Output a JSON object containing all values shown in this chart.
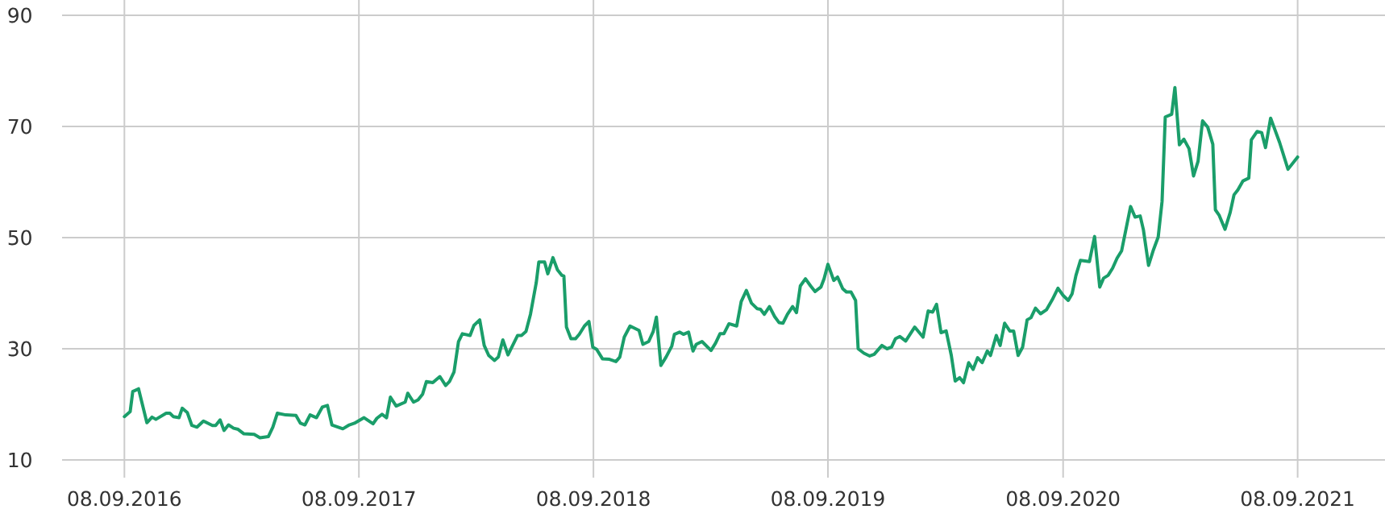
{
  "chart_data": {
    "type": "line",
    "x": [
      "2016-09-08",
      "2016-09-17",
      "2016-09-21",
      "2016-09-30",
      "2016-10-13",
      "2016-10-21",
      "2016-10-27",
      "2016-11-12",
      "2016-11-18",
      "2016-11-23",
      "2016-12-02",
      "2016-12-07",
      "2016-12-15",
      "2016-12-22",
      "2016-12-30",
      "2017-01-09",
      "2017-01-23",
      "2017-01-28",
      "2017-02-04",
      "2017-02-10",
      "2017-02-17",
      "2017-02-25",
      "2017-03-04",
      "2017-03-13",
      "2017-03-29",
      "2017-04-07",
      "2017-04-20",
      "2017-04-27",
      "2017-05-04",
      "2017-05-17",
      "2017-06-02",
      "2017-06-09",
      "2017-06-16",
      "2017-06-24",
      "2017-07-04",
      "2017-07-13",
      "2017-07-21",
      "2017-07-28",
      "2017-08-14",
      "2017-08-24",
      "2017-09-01",
      "2017-09-16",
      "2017-09-30",
      "2017-10-06",
      "2017-10-14",
      "2017-10-21",
      "2017-10-27",
      "2017-11-05",
      "2017-11-19",
      "2017-11-23",
      "2017-12-02",
      "2017-12-09",
      "2017-12-16",
      "2017-12-22",
      "2018-01-01",
      "2018-01-12",
      "2018-01-21",
      "2018-01-27",
      "2018-02-03",
      "2018-02-10",
      "2018-02-16",
      "2018-02-28",
      "2018-03-06",
      "2018-03-15",
      "2018-03-22",
      "2018-03-29",
      "2018-04-07",
      "2018-04-13",
      "2018-04-20",
      "2018-04-28",
      "2018-05-13",
      "2018-05-19",
      "2018-05-26",
      "2018-06-02",
      "2018-06-11",
      "2018-06-15",
      "2018-06-24",
      "2018-06-29",
      "2018-07-07",
      "2018-07-14",
      "2018-07-21",
      "2018-07-24",
      "2018-07-28",
      "2018-08-04",
      "2018-08-11",
      "2018-08-17",
      "2018-08-25",
      "2018-09-01",
      "2018-09-07",
      "2018-09-13",
      "2018-09-22",
      "2018-10-03",
      "2018-10-13",
      "2018-10-19",
      "2018-10-26",
      "2018-11-04",
      "2018-11-18",
      "2018-11-24",
      "2018-12-03",
      "2018-12-10",
      "2018-12-15",
      "2018-12-22",
      "2018-12-30",
      "2019-01-08",
      "2019-01-12",
      "2019-01-20",
      "2019-01-26",
      "2019-02-03",
      "2019-02-10",
      "2019-02-15",
      "2019-02-24",
      "2019-03-10",
      "2019-03-17",
      "2019-03-24",
      "2019-03-30",
      "2019-04-07",
      "2019-04-19",
      "2019-04-26",
      "2019-05-04",
      "2019-05-12",
      "2019-05-21",
      "2019-05-26",
      "2019-06-01",
      "2019-06-09",
      "2019-06-17",
      "2019-06-24",
      "2019-06-30",
      "2019-07-07",
      "2019-07-15",
      "2019-07-21",
      "2019-07-27",
      "2019-08-04",
      "2019-08-12",
      "2019-08-19",
      "2019-08-28",
      "2019-09-02",
      "2019-09-08",
      "2019-09-17",
      "2019-09-23",
      "2019-10-01",
      "2019-10-07",
      "2019-10-14",
      "2019-10-21",
      "2019-10-25",
      "2019-11-03",
      "2019-11-12",
      "2019-11-19",
      "2019-12-01",
      "2019-12-09",
      "2019-12-16",
      "2019-12-22",
      "2019-12-29",
      "2020-01-07",
      "2020-01-21",
      "2020-02-03",
      "2020-02-11",
      "2020-02-18",
      "2020-02-24",
      "2020-03-02",
      "2020-03-10",
      "2020-03-18",
      "2020-03-24",
      "2020-03-31",
      "2020-04-06",
      "2020-04-14",
      "2020-04-21",
      "2020-04-28",
      "2020-05-05",
      "2020-05-13",
      "2020-05-18",
      "2020-05-27",
      "2020-06-02",
      "2020-06-09",
      "2020-06-17",
      "2020-06-23",
      "2020-06-30",
      "2020-07-07",
      "2020-07-14",
      "2020-07-20",
      "2020-07-27",
      "2020-08-04",
      "2020-08-13",
      "2020-08-22",
      "2020-08-31",
      "2020-09-08",
      "2020-09-16",
      "2020-09-22",
      "2020-09-28",
      "2020-10-05",
      "2020-10-19",
      "2020-10-27",
      "2020-11-04",
      "2020-11-10",
      "2020-11-17",
      "2020-11-24",
      "2020-12-01",
      "2020-12-08",
      "2020-12-22",
      "2020-12-29",
      "2021-01-06",
      "2021-01-11",
      "2021-01-19",
      "2021-01-26",
      "2021-02-03",
      "2021-02-09",
      "2021-02-14",
      "2021-02-24",
      "2021-03-01",
      "2021-03-08",
      "2021-03-15",
      "2021-03-23",
      "2021-03-30",
      "2021-04-06",
      "2021-04-13",
      "2021-04-21",
      "2021-04-29",
      "2021-05-03",
      "2021-05-09",
      "2021-05-18",
      "2021-05-26",
      "2021-06-01",
      "2021-06-07",
      "2021-06-15",
      "2021-06-24",
      "2021-06-28",
      "2021-07-07",
      "2021-07-14",
      "2021-07-20",
      "2021-07-28",
      "2021-08-11",
      "2021-08-24",
      "2021-09-08"
    ],
    "series": [
      {
        "color": "#1a9e6a",
        "values": [
          17.8,
          18.7,
          22.3,
          22.8,
          16.7,
          17.7,
          17.3,
          18.4,
          18.4,
          17.8,
          17.6,
          19.3,
          18.5,
          16.2,
          15.9,
          17.0,
          16.2,
          16.2,
          17.2,
          15.3,
          16.3,
          15.7,
          15.5,
          14.7,
          14.6,
          14.0,
          14.2,
          15.9,
          18.4,
          18.1,
          18.0,
          16.6,
          16.3,
          18.1,
          17.6,
          19.5,
          19.8,
          16.3,
          15.6,
          16.3,
          16.6,
          17.6,
          16.5,
          17.5,
          18.2,
          17.6,
          21.3,
          19.7,
          20.4,
          22.0,
          20.4,
          20.8,
          21.8,
          24.1,
          23.9,
          25.0,
          23.4,
          24.1,
          25.8,
          31.3,
          32.7,
          32.4,
          34.2,
          35.2,
          30.6,
          28.8,
          27.9,
          28.5,
          31.6,
          28.9,
          32.4,
          32.4,
          33.1,
          36.2,
          41.9,
          45.6,
          45.6,
          43.5,
          46.4,
          44.2,
          43.2,
          43.1,
          33.9,
          31.8,
          31.8,
          32.6,
          34.1,
          34.9,
          30.3,
          29.9,
          28.2,
          28.1,
          27.7,
          28.5,
          32.1,
          34.1,
          33.3,
          30.8,
          31.3,
          33.1,
          35.7,
          27.0,
          28.5,
          30.5,
          32.6,
          33.0,
          32.6,
          33.0,
          29.6,
          30.8,
          31.3,
          29.7,
          31.0,
          32.7,
          32.7,
          34.5,
          34.1,
          38.5,
          40.5,
          38.2,
          37.2,
          37.1,
          36.2,
          37.6,
          35.8,
          34.7,
          34.6,
          36.2,
          37.6,
          36.5,
          41.3,
          42.6,
          41.3,
          40.3,
          41.1,
          42.6,
          45.2,
          42.3,
          42.9,
          40.8,
          40.2,
          40.2,
          38.7,
          30.0,
          29.2,
          28.7,
          29.0,
          30.6,
          30.0,
          30.3,
          31.8,
          32.2,
          31.4,
          33.9,
          32.1,
          36.8,
          36.6,
          38.0,
          32.9,
          33.2,
          28.8,
          24.2,
          24.8,
          23.9,
          27.5,
          26.3,
          28.4,
          27.5,
          29.6,
          28.8,
          32.4,
          30.6,
          34.6,
          33.2,
          33.2,
          28.8,
          30.3,
          35.2,
          35.6,
          37.3,
          36.3,
          37.0,
          38.8,
          40.9,
          39.6,
          38.7,
          39.9,
          43.2,
          45.9,
          45.7,
          50.2,
          41.1,
          42.7,
          43.2,
          44.5,
          46.3,
          47.6,
          55.6,
          53.7,
          53.9,
          51.4,
          45.0,
          47.6,
          50.1,
          56.5,
          71.7,
          72.2,
          77.0,
          66.7,
          67.7,
          66.0,
          61.1,
          63.7,
          71.0,
          69.9,
          66.8,
          55.0,
          54.0,
          51.5,
          54.5,
          57.7,
          58.6,
          60.2,
          60.7,
          67.6,
          69.1,
          68.9,
          66.2,
          71.5,
          67.1,
          62.3,
          64.5
        ]
      }
    ],
    "xlim": [
      "2016-06-03",
      "2022-01-22"
    ],
    "xticks": [
      {
        "value": "2016-09-08",
        "label": "08.09.2016"
      },
      {
        "value": "2017-09-08",
        "label": "08.09.2017"
      },
      {
        "value": "2018-09-08",
        "label": "08.09.2018"
      },
      {
        "value": "2019-09-08",
        "label": "08.09.2019"
      },
      {
        "value": "2020-09-08",
        "label": "08.09.2020"
      },
      {
        "value": "2021-09-08",
        "label": "08.09.2021"
      }
    ],
    "ylim": [
      10,
      90
    ],
    "yticks": [
      10,
      30,
      50,
      70,
      90
    ],
    "grid": true,
    "marker": "none",
    "line_style": "solid"
  }
}
